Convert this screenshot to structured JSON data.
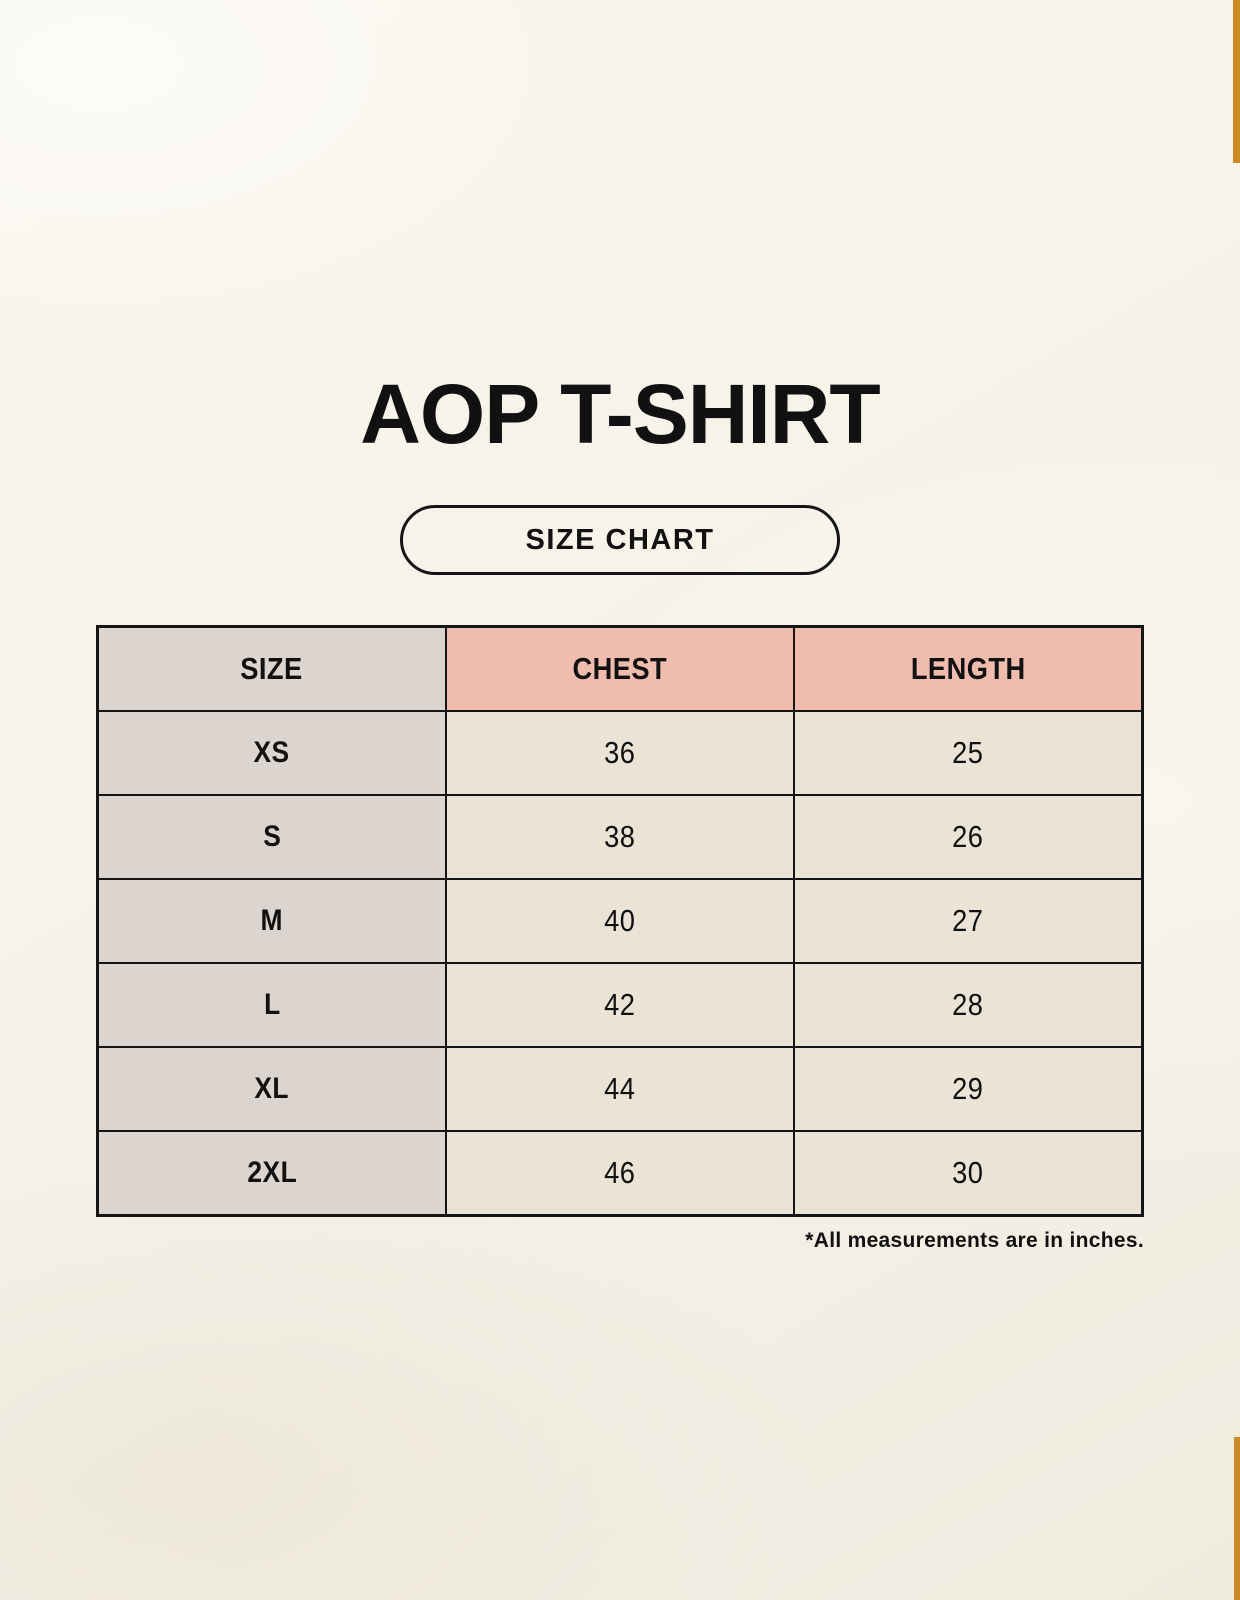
{
  "page": {
    "title": "AOP T-SHIRT",
    "size_chart_button": "SIZE CHART",
    "footnote": "*All measurements are in inches."
  },
  "chart_data": {
    "type": "table",
    "title": "AOP T-SHIRT",
    "columns": [
      "SIZE",
      "CHEST",
      "LENGTH"
    ],
    "rows": [
      [
        "XS",
        36,
        25
      ],
      [
        "S",
        38,
        26
      ],
      [
        "M",
        40,
        27
      ],
      [
        "L",
        42,
        28
      ],
      [
        "XL",
        44,
        29
      ],
      [
        "2XL",
        46,
        30
      ]
    ],
    "units": "inches",
    "note": "*All measurements are in inches."
  },
  "colors": {
    "background": "#f7f3ea",
    "column_header_accent": "#f0bcad",
    "size_column_bg": "#dbd4cf",
    "cell_bg": "#eae3d6",
    "border": "#151515",
    "stripe": "#cc8a24",
    "text": "#111111"
  }
}
